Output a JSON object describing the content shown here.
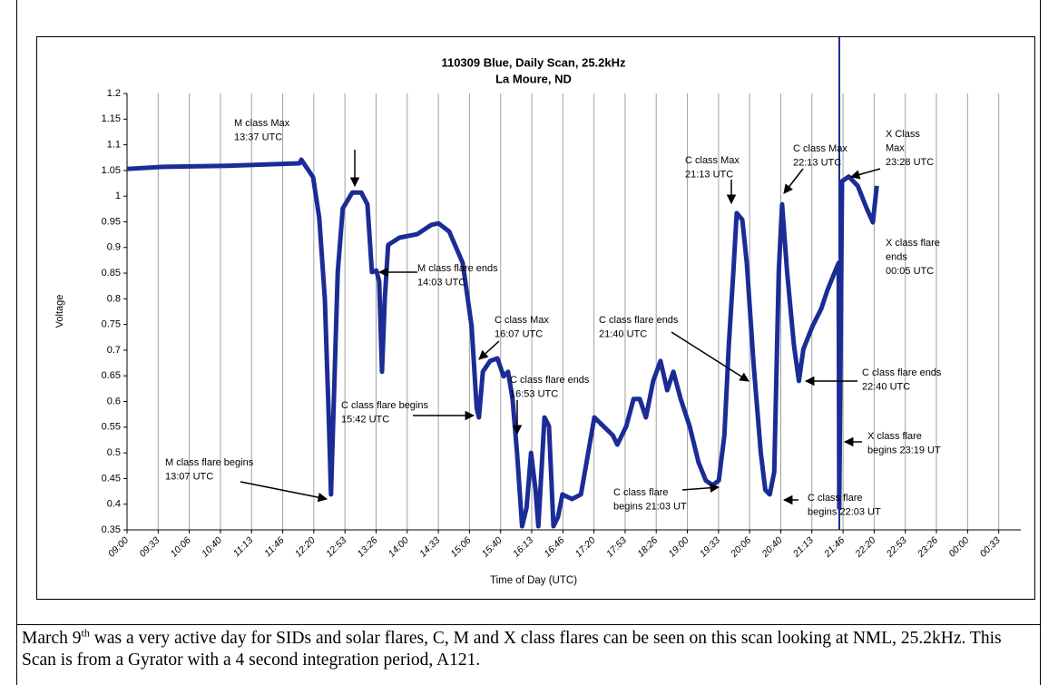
{
  "chart_data": {
    "type": "line",
    "title": "110309 Blue, Daily Scan, 25.2kHz",
    "subtitle": "La Moure, ND",
    "y_label": "Voltage",
    "x_label": "Time of Day (UTC)",
    "ylim": [
      0.35,
      1.2
    ],
    "yticks": [
      0.35,
      0.4,
      0.45,
      0.5,
      0.55,
      0.6,
      0.65,
      0.7,
      0.75,
      0.8,
      0.85,
      0.9,
      0.95,
      1,
      1.05,
      1.1,
      1.15,
      1.2
    ],
    "xlim": [
      9,
      24.95
    ],
    "xticks": [
      {
        "value": 9,
        "label": "09:00"
      },
      {
        "value": 9.556,
        "label": "09:33"
      },
      {
        "value": 10.111,
        "label": "10:06"
      },
      {
        "value": 10.667,
        "label": "10:40"
      },
      {
        "value": 11.222,
        "label": "11:13"
      },
      {
        "value": 11.778,
        "label": "11:46"
      },
      {
        "value": 12.333,
        "label": "12:20"
      },
      {
        "value": 12.889,
        "label": "12:53"
      },
      {
        "value": 13.444,
        "label": "13:26"
      },
      {
        "value": 14,
        "label": "14:00"
      },
      {
        "value": 14.556,
        "label": "14:33"
      },
      {
        "value": 15.111,
        "label": "15:06"
      },
      {
        "value": 15.667,
        "label": "15:40"
      },
      {
        "value": 16.222,
        "label": "16:13"
      },
      {
        "value": 16.778,
        "label": "16:46"
      },
      {
        "value": 17.333,
        "label": "17:20"
      },
      {
        "value": 17.889,
        "label": "17:53"
      },
      {
        "value": 18.444,
        "label": "18:26"
      },
      {
        "value": 19,
        "label": "19:00"
      },
      {
        "value": 19.556,
        "label": "19:33"
      },
      {
        "value": 20.111,
        "label": "20:06"
      },
      {
        "value": 20.667,
        "label": "20:40"
      },
      {
        "value": 21.222,
        "label": "21:13"
      },
      {
        "value": 21.778,
        "label": "21:46"
      },
      {
        "value": 22.333,
        "label": "22:20"
      },
      {
        "value": 22.889,
        "label": "22:53"
      },
      {
        "value": 23.444,
        "label": "23:26"
      },
      {
        "value": 24,
        "label": "00:00"
      },
      {
        "value": 24.556,
        "label": "00:33"
      }
    ],
    "grid": "x",
    "x": [
      9.0,
      9.65,
      10.78,
      12.08,
      12.11,
      12.32,
      12.43,
      12.53,
      12.6,
      12.64,
      12.76,
      12.85,
      13.02,
      13.18,
      13.29,
      13.37,
      13.45,
      13.5,
      13.55,
      13.6,
      13.66,
      13.86,
      14.18,
      14.43,
      14.56,
      14.75,
      14.99,
      15.15,
      15.24,
      15.28,
      15.35,
      15.48,
      15.61,
      15.72,
      15.8,
      15.88,
      15.96,
      16.05,
      16.13,
      16.21,
      16.29,
      16.34,
      16.45,
      16.53,
      16.61,
      16.69,
      16.77,
      16.94,
      17.1,
      17.23,
      17.34,
      17.5,
      17.67,
      17.75,
      17.91,
      18.04,
      18.15,
      18.26,
      18.39,
      18.52,
      18.64,
      18.75,
      18.88,
      19.04,
      19.2,
      19.33,
      19.45,
      19.56,
      19.66,
      19.74,
      19.82,
      19.88,
      19.98,
      20.06,
      20.18,
      20.31,
      20.39,
      20.47,
      20.55,
      20.63,
      20.69,
      20.78,
      20.9,
      20.99,
      21.07,
      21.23,
      21.39,
      21.5,
      21.63,
      21.7,
      21.71,
      21.76,
      21.88,
      22.04,
      22.2,
      22.31,
      22.38
    ],
    "series": [
      {
        "color": "#1c2c96",
        "values": [
          1.053,
          1.057,
          1.059,
          1.064,
          1.071,
          1.037,
          0.958,
          0.8,
          0.569,
          0.419,
          0.852,
          0.976,
          1.007,
          1.007,
          0.984,
          0.852,
          0.855,
          0.834,
          0.658,
          0.8,
          0.905,
          0.919,
          0.926,
          0.944,
          0.947,
          0.931,
          0.87,
          0.746,
          0.587,
          0.569,
          0.658,
          0.679,
          0.684,
          0.649,
          0.658,
          0.605,
          0.5,
          0.357,
          0.393,
          0.5,
          0.428,
          0.357,
          0.569,
          0.552,
          0.357,
          0.375,
          0.419,
          0.41,
          0.419,
          0.5,
          0.569,
          0.552,
          0.534,
          0.516,
          0.552,
          0.605,
          0.605,
          0.569,
          0.64,
          0.679,
          0.622,
          0.658,
          0.605,
          0.552,
          0.481,
          0.446,
          0.437,
          0.446,
          0.534,
          0.711,
          0.852,
          0.967,
          0.954,
          0.87,
          0.675,
          0.5,
          0.428,
          0.419,
          0.463,
          0.852,
          0.984,
          0.852,
          0.711,
          0.64,
          0.702,
          0.746,
          0.781,
          0.817,
          0.852,
          0.87,
          0.393,
          1.029,
          1.038,
          1.02,
          0.976,
          0.949,
          1.02
        ]
      }
    ],
    "annotations": [
      [
        "M class Max",
        "13:37 UTC"
      ],
      [
        "M class flare ends",
        "14:03 UTC"
      ],
      [
        "C class Max",
        "16:07 UTC"
      ],
      [
        "C class flare ends",
        "16:53 UTC"
      ],
      [
        "C class flare begins",
        "15:42 UTC"
      ],
      [
        "M class flare begins",
        "13:07 UTC"
      ],
      [
        "C class flare ends",
        "21:40 UTC"
      ],
      [
        "C class flare",
        "begins 21:03 UT"
      ],
      [
        "C class Max",
        "21:13 UTC"
      ],
      [
        "C class Max",
        "22:13 UTC"
      ],
      [
        "X Class",
        "Max",
        "23:28 UTC"
      ],
      [
        "X class flare",
        "ends",
        "00:05 UTC"
      ],
      [
        "C class flare ends",
        "22:40 UTC"
      ],
      [
        "X class flare",
        "begins 23:19 UT"
      ],
      [
        "C class flare",
        "begins 22:03 UT"
      ]
    ]
  },
  "caption": {
    "before": "March 9",
    "sup": "th",
    "after": " was a very active day for SIDs and solar flares, C, M and X class flares can be seen on this scan looking at NML, 25.2kHz. This Scan is from a Gyrator with a 4 second integration period, A121."
  }
}
